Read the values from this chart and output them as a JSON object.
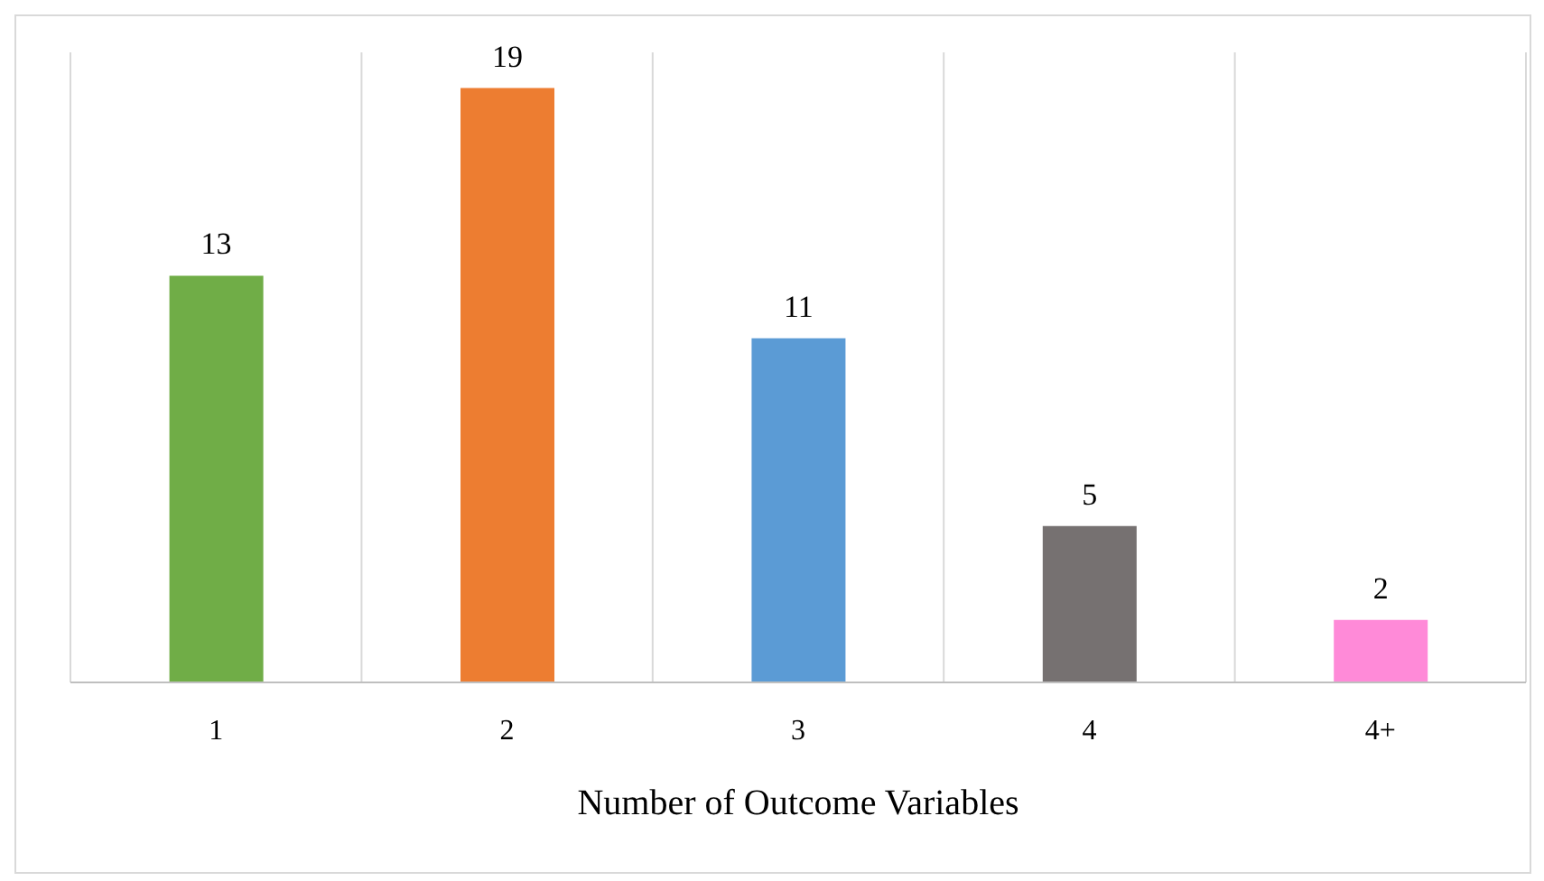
{
  "chart_data": {
    "type": "bar",
    "xlabel": "Number of Outcome Variables",
    "categories": [
      "1",
      "2",
      "3",
      "4",
      "4+"
    ],
    "values": [
      13,
      19,
      11,
      5,
      2
    ],
    "colors": [
      "#70ad47",
      "#ed7d31",
      "#5b9bd5",
      "#767171",
      "#ff8ad8"
    ],
    "data_labels": true,
    "grid": "x"
  }
}
